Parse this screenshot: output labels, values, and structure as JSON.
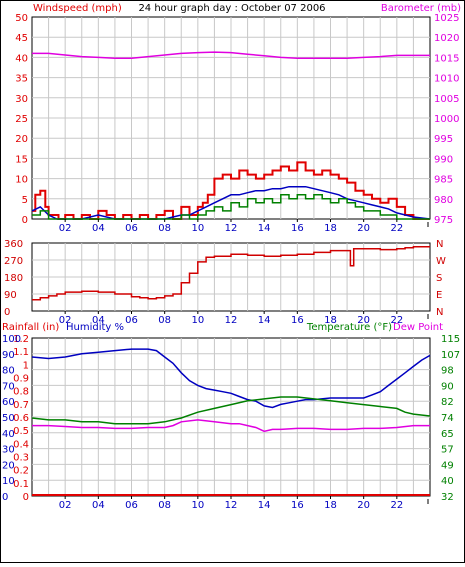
{
  "colors": {
    "windspeed": "#e00000",
    "gust_green": "#008000",
    "avg_blue": "#0000c0",
    "barometer": "#e000e0",
    "direction": "#d00000",
    "humidity": "#0000c0",
    "temperature": "#008000",
    "dewpoint": "#e000e0",
    "rain": "#e00000"
  },
  "chart_data": [
    {
      "type": "line",
      "title": "24 hour graph day : October 07 2006",
      "y_left_label": "Windspeed (mph)",
      "y_right_label": "Barometer (mb)",
      "x_ticks": [
        "02",
        "04",
        "06",
        "08",
        "10",
        "12",
        "14",
        "16",
        "18",
        "20",
        "22"
      ],
      "y_left_ticks": [
        "0",
        "5",
        "10",
        "15",
        "20",
        "25",
        "30",
        "35",
        "40",
        "45",
        "50"
      ],
      "y_right_ticks": [
        "975",
        "980",
        "985",
        "990",
        "995",
        "1000",
        "1005",
        "1010",
        "1015",
        "1020",
        "1025"
      ],
      "ylim_left": [
        0,
        50
      ],
      "ylim_right": [
        975,
        1025
      ],
      "x_range": [
        0,
        24
      ],
      "grid": true,
      "series": [
        {
          "role": "windspeed",
          "x": [
            0,
            0.2,
            0.5,
            0.8,
            1,
            1.3,
            1.6,
            2,
            2.5,
            3,
            3.5,
            4,
            4.5,
            5,
            5.5,
            6,
            6.5,
            7,
            7.5,
            8,
            8.5,
            9,
            9.5,
            10,
            10.3,
            10.6,
            11,
            11.5,
            12,
            12.5,
            13,
            13.5,
            14,
            14.5,
            15,
            15.5,
            16,
            16.5,
            17,
            17.5,
            18,
            18.5,
            19,
            19.5,
            20,
            20.5,
            21,
            21.5,
            22,
            22.5,
            23,
            23.5,
            24
          ],
          "values": [
            2,
            6,
            7,
            3,
            1,
            1,
            0,
            1,
            0,
            1,
            0,
            2,
            1,
            0,
            1,
            0,
            1,
            0,
            1,
            2,
            0,
            3,
            1,
            3,
            4,
            6,
            10,
            11,
            10,
            12,
            11,
            10,
            11,
            12,
            13,
            12,
            14,
            12,
            11,
            12,
            11,
            10,
            9,
            7,
            6,
            5,
            4,
            5,
            3,
            1,
            0,
            0,
            0
          ]
        },
        {
          "role": "average",
          "x": [
            0,
            0.5,
            1,
            1.5,
            2,
            3,
            4,
            5,
            6,
            7,
            8,
            9,
            9.5,
            10,
            10.5,
            11,
            11.5,
            12,
            12.5,
            13,
            13.5,
            14,
            14.5,
            15,
            15.5,
            16,
            16.5,
            17,
            17.5,
            18,
            18.5,
            19,
            19.5,
            20,
            20.5,
            21,
            21.5,
            22,
            23,
            24
          ],
          "values": [
            2,
            3,
            1,
            0,
            0,
            0,
            1,
            0,
            0,
            0,
            0,
            1,
            1,
            2,
            3,
            4,
            5,
            6,
            6,
            6.5,
            7,
            7,
            7.5,
            7.5,
            8,
            8,
            8,
            7.5,
            7,
            6.5,
            6,
            5,
            4.5,
            4,
            3.5,
            3,
            2.5,
            1.5,
            0.5,
            0
          ]
        },
        {
          "role": "gust",
          "x": [
            0,
            0.5,
            1,
            1.5,
            2,
            3,
            4,
            5,
            6,
            7,
            8,
            9,
            9.5,
            10,
            10.5,
            11,
            11.5,
            12,
            12.5,
            13,
            13.5,
            14,
            14.5,
            15,
            15.5,
            16,
            16.5,
            17,
            17.5,
            18,
            18.5,
            19,
            19.5,
            20,
            20.5,
            21,
            21.5,
            22,
            23,
            24
          ],
          "values": [
            1,
            2,
            0,
            0,
            0,
            0,
            0,
            0,
            0,
            0,
            0,
            1,
            0,
            1,
            2,
            3,
            2,
            4,
            3,
            5,
            4,
            5,
            4,
            6,
            5,
            6,
            5,
            6,
            5,
            4,
            5,
            4,
            3,
            2,
            2,
            1,
            1,
            0,
            0,
            0
          ]
        },
        {
          "role": "barometer",
          "axis": "right",
          "x": [
            0,
            1,
            2,
            3,
            4,
            5,
            6,
            7,
            8,
            9,
            10,
            11,
            12,
            13,
            14,
            15,
            16,
            17,
            18,
            19,
            20,
            21,
            22,
            23,
            24
          ],
          "values": [
            1016,
            1016,
            1015.6,
            1015.2,
            1015,
            1014.8,
            1014.8,
            1015.2,
            1015.6,
            1016,
            1016.2,
            1016.3,
            1016.2,
            1015.8,
            1015.4,
            1015,
            1014.8,
            1014.8,
            1014.8,
            1014.8,
            1015,
            1015.2,
            1015.5,
            1015.5,
            1015.5
          ]
        }
      ]
    },
    {
      "type": "scatter",
      "y_left_ticks": [
        "360",
        "270",
        "180",
        "90",
        "0"
      ],
      "y_right_ticks": [
        "N",
        "W",
        "S",
        "E",
        "N"
      ],
      "ylim": [
        0,
        360
      ],
      "x_range": [
        0,
        24
      ],
      "grid": true,
      "series": [
        {
          "role": "direction",
          "x": [
            0,
            0.5,
            1,
            1.5,
            2,
            3,
            4,
            5,
            6,
            6.5,
            7,
            7.5,
            8,
            8.5,
            9,
            9.5,
            10,
            10.5,
            11,
            12,
            13,
            14,
            15,
            16,
            17,
            18,
            19,
            19.2,
            19.4,
            20,
            21,
            22,
            22.5,
            23,
            24
          ],
          "values": [
            60,
            70,
            80,
            90,
            100,
            105,
            100,
            90,
            75,
            70,
            65,
            70,
            80,
            90,
            150,
            200,
            260,
            285,
            290,
            300,
            295,
            290,
            295,
            300,
            310,
            320,
            320,
            240,
            330,
            330,
            325,
            330,
            335,
            340,
            340
          ]
        }
      ]
    },
    {
      "type": "line",
      "y_left_label_1": "Rainfall (in)",
      "y_left_label_2": "Humidity %",
      "y_right_label_1": "Temperature (°F)",
      "y_right_label_2": "Dew Point",
      "rain_ticks": [
        "0",
        "0.1",
        "0.2",
        "0.3",
        "0.4",
        "0.5",
        "0.6",
        "0.7",
        "0.8",
        "0.9",
        "1",
        "1.1",
        "1.2"
      ],
      "humidity_ticks": [
        "0",
        "10",
        "20",
        "30",
        "40",
        "50",
        "60",
        "70",
        "80",
        "90",
        "100"
      ],
      "temp_ticks": [
        "32",
        "40",
        "49",
        "57",
        "65",
        "74",
        "82",
        "90",
        "98",
        "107",
        "115"
      ],
      "ylim_humidity": [
        0,
        100
      ],
      "ylim_temp": [
        32,
        115
      ],
      "x_range": [
        0,
        24
      ],
      "grid": true,
      "series": [
        {
          "role": "humidity",
          "x": [
            0,
            1,
            2,
            3,
            4,
            5,
            6,
            7,
            7.5,
            8,
            8.5,
            9,
            9.5,
            10,
            10.5,
            11,
            11.5,
            12,
            12.5,
            13,
            13.5,
            14,
            14.5,
            15,
            15.5,
            16,
            16.5,
            17,
            18,
            19,
            20,
            20.5,
            21,
            21.5,
            22,
            22.5,
            23,
            23.5,
            24
          ],
          "values": [
            88,
            87,
            88,
            90,
            91,
            92,
            93,
            93,
            92,
            88,
            84,
            78,
            73,
            70,
            68,
            67,
            66,
            65,
            63,
            61,
            60,
            57,
            56,
            58,
            59,
            60,
            61,
            61,
            62,
            62,
            62,
            64,
            66,
            70,
            74,
            78,
            82,
            86,
            89
          ]
        },
        {
          "role": "temperature",
          "x": [
            0,
            1,
            2,
            3,
            4,
            5,
            6,
            7,
            8,
            9,
            10,
            11,
            12,
            13,
            14,
            15,
            16,
            17,
            18,
            19,
            20,
            21,
            22,
            22.5,
            23,
            24
          ],
          "values": [
            73,
            72,
            72,
            71,
            71,
            70,
            70,
            70,
            71,
            73,
            76,
            78,
            80,
            82,
            83,
            84,
            84,
            83,
            82,
            81,
            80,
            79,
            78,
            76,
            75,
            74
          ]
        },
        {
          "role": "dewpoint",
          "x": [
            0,
            1,
            2,
            3,
            4,
            5,
            6,
            7,
            8,
            8.5,
            9,
            10,
            11,
            12,
            12.5,
            13,
            13.5,
            14,
            14.5,
            15,
            16,
            17,
            18,
            19,
            20,
            21,
            22,
            23,
            24
          ],
          "values": [
            69,
            69,
            68.5,
            68,
            68,
            67.5,
            67.5,
            68,
            68,
            69,
            71,
            72,
            71,
            70,
            70,
            69,
            68,
            66,
            67,
            67,
            67.5,
            67.5,
            67,
            67,
            67.5,
            67.5,
            68,
            69,
            69
          ]
        },
        {
          "role": "rainfall",
          "x": [
            0,
            24
          ],
          "values": [
            0,
            0
          ]
        }
      ]
    }
  ]
}
